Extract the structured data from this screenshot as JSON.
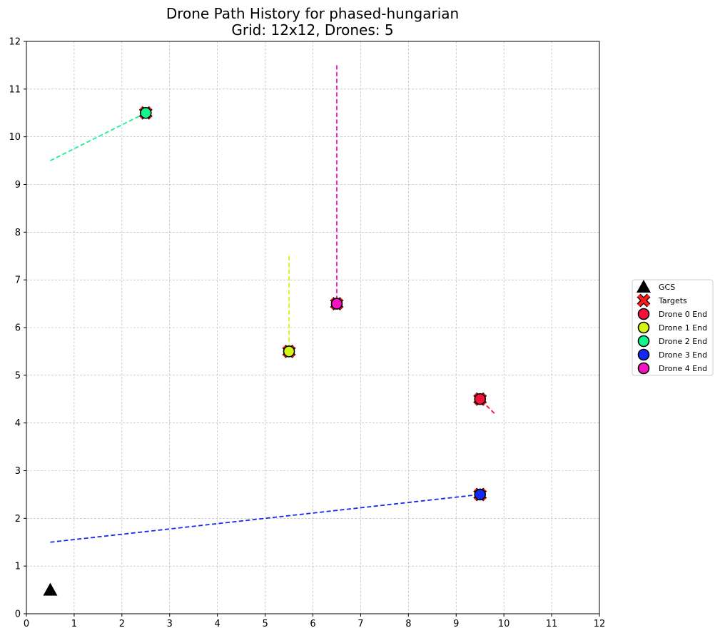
{
  "chart_data": {
    "type": "scatter",
    "title": "Drone Path History for phased-hungarian",
    "subtitle": "Grid: 12x12, Drones: 5",
    "xlim": [
      0,
      12
    ],
    "ylim": [
      0,
      12
    ],
    "xticks": [
      0,
      1,
      2,
      3,
      4,
      5,
      6,
      7,
      8,
      9,
      10,
      11,
      12
    ],
    "yticks": [
      0,
      1,
      2,
      3,
      4,
      5,
      6,
      7,
      8,
      9,
      10,
      11,
      12
    ],
    "grid": true,
    "legend_position": "right",
    "gcs": {
      "label": "GCS",
      "x": 0.5,
      "y": 0.5,
      "color": "#000000"
    },
    "targets": {
      "label": "Targets",
      "color": "#ff1a1a",
      "points": [
        [
          9.5,
          4.5
        ],
        [
          5.5,
          5.5
        ],
        [
          2.5,
          10.5
        ],
        [
          9.5,
          2.5
        ],
        [
          6.5,
          6.5
        ]
      ]
    },
    "drones": [
      {
        "name": "Drone 0 End",
        "color": "#f5123a",
        "path": [
          [
            9.8,
            4.2
          ],
          [
            9.5,
            4.5
          ]
        ],
        "end": [
          9.5,
          4.5
        ]
      },
      {
        "name": "Drone 1 End",
        "color": "#d4f511",
        "path": [
          [
            5.5,
            7.5
          ],
          [
            5.5,
            5.5
          ]
        ],
        "end": [
          5.5,
          5.5
        ]
      },
      {
        "name": "Drone 2 End",
        "color": "#12f58a",
        "path": [
          [
            0.5,
            9.5
          ],
          [
            2.5,
            10.5
          ]
        ],
        "end": [
          2.5,
          10.5
        ]
      },
      {
        "name": "Drone 3 End",
        "color": "#1229f5",
        "path": [
          [
            0.5,
            1.5
          ],
          [
            9.5,
            2.5
          ]
        ],
        "end": [
          9.5,
          2.5
        ]
      },
      {
        "name": "Drone 4 End",
        "color": "#f512c4",
        "path": [
          [
            6.5,
            11.5
          ],
          [
            6.5,
            6.5
          ]
        ],
        "end": [
          6.5,
          6.5
        ]
      }
    ]
  }
}
